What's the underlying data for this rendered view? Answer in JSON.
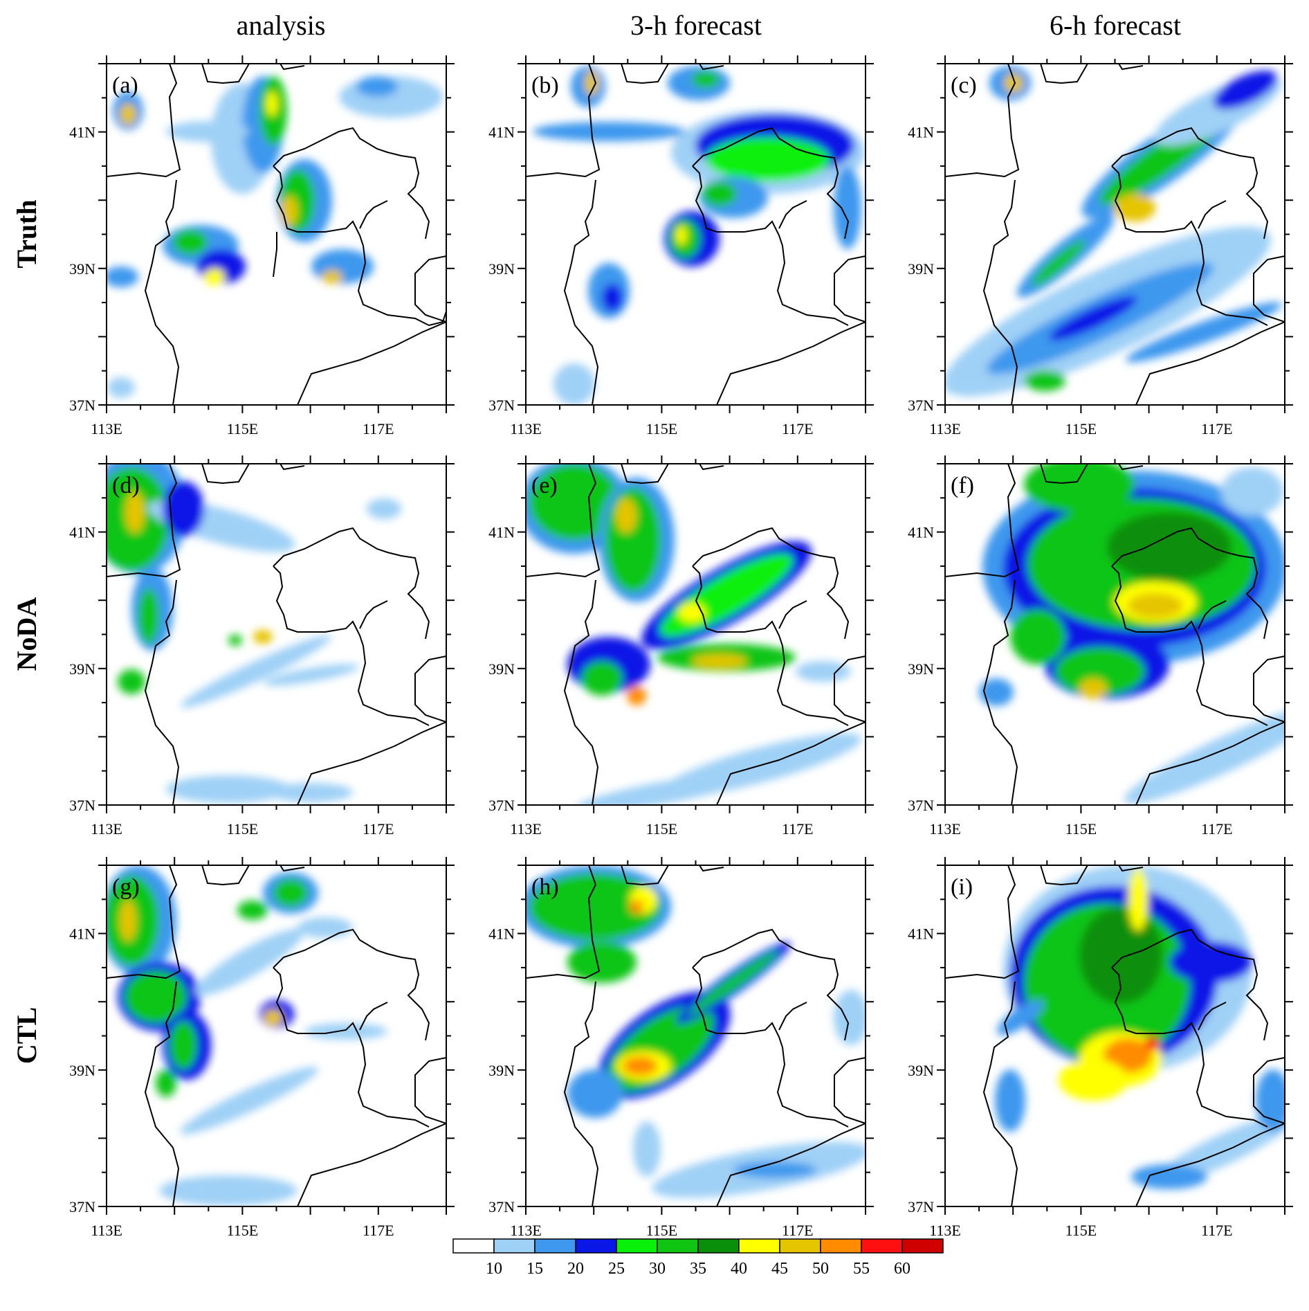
{
  "column_titles": [
    "analysis",
    "3-h forecast",
    "6-h forecast"
  ],
  "row_labels": [
    "Truth",
    "NoDA",
    "CTL"
  ],
  "panel_letters": [
    "(a)",
    "(b)",
    "(c)",
    "(d)",
    "(e)",
    "(f)",
    "(g)",
    "(h)",
    "(i)"
  ],
  "lon_labels": [
    "113E",
    "115E",
    "117E"
  ],
  "lat_labels": [
    "41N",
    "39N",
    "37N"
  ],
  "colorbar": {
    "labels": [
      "10",
      "15",
      "20",
      "25",
      "30",
      "35",
      "40",
      "45",
      "50",
      "55",
      "60"
    ],
    "colors": [
      "#ffffff",
      "#9fd0f6",
      "#3d98ee",
      "#0a17e6",
      "#09f00a",
      "#10c512",
      "#0a8f0a",
      "#ffff00",
      "#e5c400",
      "#ff8c00",
      "#ff1010",
      "#d00000"
    ]
  },
  "map": {
    "lon_range": [
      113,
      118
    ],
    "lat_range": [
      37,
      42
    ]
  }
}
